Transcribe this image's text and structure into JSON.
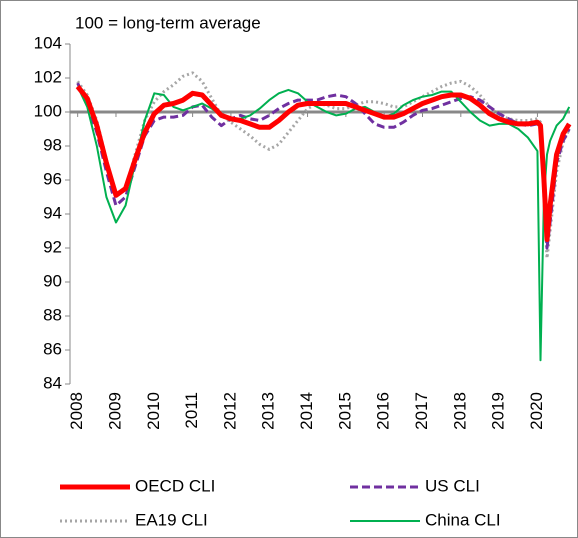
{
  "chart_data": {
    "type": "line",
    "annotation": "100 = long-term average",
    "reference_line": 100,
    "x": [
      2008,
      2008.25,
      2008.5,
      2008.75,
      2009,
      2009.25,
      2009.5,
      2009.75,
      2010,
      2010.25,
      2010.5,
      2010.75,
      2011,
      2011.25,
      2011.5,
      2011.75,
      2012,
      2012.25,
      2012.5,
      2012.75,
      2013,
      2013.25,
      2013.5,
      2013.75,
      2014,
      2014.25,
      2014.5,
      2014.75,
      2015,
      2015.25,
      2015.5,
      2015.75,
      2016,
      2016.25,
      2016.5,
      2016.75,
      2017,
      2017.25,
      2017.5,
      2017.75,
      2018,
      2018.25,
      2018.5,
      2018.75,
      2019,
      2019.25,
      2019.5,
      2019.75,
      2020,
      2020.08,
      2020.17,
      2020.25,
      2020.33,
      2020.5,
      2020.67,
      2020.83
    ],
    "series": [
      {
        "name": "OECD CLI",
        "color": "#ff0000",
        "width": 5,
        "dash": "solid",
        "values": [
          101.5,
          100.8,
          99.2,
          97,
          95.1,
          95.5,
          97.2,
          98.8,
          99.9,
          100.4,
          100.5,
          100.7,
          101.1,
          101,
          100.4,
          99.8,
          99.6,
          99.5,
          99.3,
          99.1,
          99.1,
          99.5,
          100,
          100.4,
          100.5,
          100.5,
          100.5,
          100.5,
          100.5,
          100.3,
          100.1,
          99.9,
          99.7,
          99.7,
          99.9,
          100.2,
          100.5,
          100.7,
          100.9,
          101,
          101,
          100.8,
          100.4,
          99.9,
          99.6,
          99.4,
          99.3,
          99.3,
          99.4,
          99.2,
          96,
          92.5,
          94.5,
          97.5,
          98.7,
          99.3
        ]
      },
      {
        "name": "US CLI",
        "color": "#7030a0",
        "width": 3,
        "dash": "dashed",
        "values": [
          101.7,
          100.5,
          98.8,
          96.5,
          94.5,
          95,
          96.8,
          98.6,
          99.5,
          99.7,
          99.7,
          99.8,
          100.3,
          100.4,
          99.7,
          99.2,
          99.6,
          99.8,
          99.6,
          99.5,
          99.8,
          100.2,
          100.5,
          100.7,
          100.7,
          100.7,
          100.9,
          101,
          100.9,
          100.5,
          99.9,
          99.3,
          99.1,
          99.1,
          99.4,
          99.8,
          100.1,
          100.2,
          100.4,
          100.6,
          100.8,
          100.9,
          100.7,
          100.3,
          99.9,
          99.6,
          99.3,
          99.2,
          99.3,
          99.1,
          95.5,
          92,
          93.5,
          97,
          98.3,
          99
        ]
      },
      {
        "name": "EA19 CLI",
        "color": "#a6a6a6",
        "width": 3,
        "dash": "dotted",
        "values": [
          101.8,
          101,
          99.5,
          97.2,
          95,
          95.5,
          97.5,
          99.5,
          100.6,
          101.2,
          101.6,
          102.1,
          102.3,
          101.8,
          100.8,
          99.8,
          99.4,
          99,
          98.6,
          98.1,
          97.8,
          98.1,
          98.8,
          99.5,
          100.2,
          100.5,
          100.4,
          100.2,
          100.2,
          100.4,
          100.6,
          100.6,
          100.5,
          100.3,
          100.3,
          100.6,
          100.9,
          101.2,
          101.5,
          101.7,
          101.8,
          101.5,
          101,
          100.3,
          99.8,
          99.6,
          99.5,
          99.5,
          99.6,
          99.4,
          95,
          91.4,
          93,
          96.5,
          98.2,
          99
        ]
      },
      {
        "name": "China CLI",
        "color": "#00b050",
        "width": 2,
        "dash": "solid",
        "values": [
          101.5,
          100.3,
          98,
          95,
          93.5,
          94.5,
          97,
          99.5,
          101.1,
          101,
          100.3,
          100.1,
          100.3,
          100.5,
          100.2,
          99.8,
          99.5,
          99.6,
          99.8,
          100.2,
          100.7,
          101.1,
          101.3,
          101.1,
          100.6,
          100.3,
          100,
          99.8,
          99.9,
          100.2,
          100.3,
          100,
          99.7,
          99.9,
          100.4,
          100.7,
          100.9,
          101,
          101.2,
          101.2,
          100.6,
          100,
          99.5,
          99.2,
          99.3,
          99.3,
          99,
          98.5,
          97.7,
          85.4,
          95,
          97.5,
          98.3,
          99.2,
          99.6,
          100.3
        ]
      }
    ],
    "xlim": [
      2007.8,
      2020.85
    ],
    "xticks": [
      2008,
      2009,
      2010,
      2011,
      2012,
      2013,
      2014,
      2015,
      2016,
      2017,
      2018,
      2019,
      2020
    ],
    "ylim": [
      84,
      104
    ],
    "yticks": [
      84,
      86,
      88,
      90,
      92,
      94,
      96,
      98,
      100,
      102,
      104
    ]
  }
}
